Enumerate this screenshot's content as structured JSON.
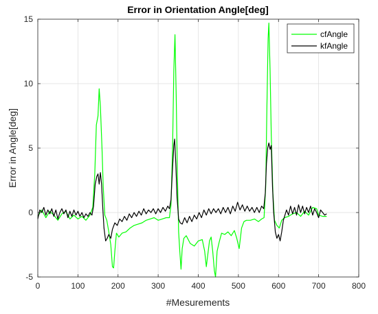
{
  "chart_data": {
    "type": "line",
    "title": "Error in Orientation Angle[deg]",
    "xlabel": "#Mesurements",
    "ylabel": "Error in Angle[deg]",
    "xlim": [
      0,
      800
    ],
    "ylim": [
      -5,
      15
    ],
    "xticks": [
      "0",
      "100",
      "200",
      "300",
      "400",
      "500",
      "600",
      "700",
      "800"
    ],
    "yticks": [
      "-5",
      "0",
      "5",
      "10",
      "15"
    ],
    "grid": true,
    "legend_position": "top-right",
    "series": [
      {
        "name": "cfAngle",
        "color": "#00ff00",
        "points": [
          [
            0,
            -0.3
          ],
          [
            10,
            0.2
          ],
          [
            20,
            -0.4
          ],
          [
            30,
            0.1
          ],
          [
            40,
            -0.2
          ],
          [
            50,
            -0.6
          ],
          [
            60,
            -0.1
          ],
          [
            70,
            0.1
          ],
          [
            80,
            -0.5
          ],
          [
            90,
            -0.2
          ],
          [
            100,
            -0.5
          ],
          [
            110,
            -0.3
          ],
          [
            120,
            -0.6
          ],
          [
            130,
            -0.2
          ],
          [
            137,
            0.4
          ],
          [
            142,
            3.0
          ],
          [
            146,
            6.8
          ],
          [
            150,
            7.5
          ],
          [
            153,
            9.6
          ],
          [
            156,
            8.2
          ],
          [
            160,
            5.0
          ],
          [
            163,
            2.0
          ],
          [
            167,
            -0.2
          ],
          [
            172,
            -0.6
          ],
          [
            177,
            -1.5
          ],
          [
            182,
            -2.5
          ],
          [
            186,
            -4.2
          ],
          [
            189,
            -4.3
          ],
          [
            192,
            -3.0
          ],
          [
            196,
            -1.6
          ],
          [
            202,
            -1.9
          ],
          [
            210,
            -1.6
          ],
          [
            220,
            -1.5
          ],
          [
            230,
            -1.2
          ],
          [
            240,
            -1.0
          ],
          [
            250,
            -0.9
          ],
          [
            260,
            -0.8
          ],
          [
            270,
            -0.6
          ],
          [
            280,
            -0.5
          ],
          [
            290,
            -0.4
          ],
          [
            300,
            -0.6
          ],
          [
            310,
            -0.5
          ],
          [
            320,
            -0.4
          ],
          [
            328,
            -0.4
          ],
          [
            332,
            0.6
          ],
          [
            336,
            5.0
          ],
          [
            339,
            11.0
          ],
          [
            342,
            13.8
          ],
          [
            345,
            9.0
          ],
          [
            348,
            3.0
          ],
          [
            351,
            -1.5
          ],
          [
            354,
            -3.0
          ],
          [
            357,
            -4.4
          ],
          [
            360,
            -2.8
          ],
          [
            364,
            -2.0
          ],
          [
            370,
            -1.8
          ],
          [
            380,
            -2.4
          ],
          [
            390,
            -2.6
          ],
          [
            400,
            -2.2
          ],
          [
            410,
            -2.1
          ],
          [
            416,
            -3.0
          ],
          [
            420,
            -4.2
          ],
          [
            424,
            -3.2
          ],
          [
            428,
            -2.2
          ],
          [
            432,
            -1.9
          ],
          [
            436,
            -3.0
          ],
          [
            440,
            -4.5
          ],
          [
            443,
            -5.0
          ],
          [
            447,
            -3.0
          ],
          [
            452,
            -2.3
          ],
          [
            458,
            -1.6
          ],
          [
            466,
            -1.7
          ],
          [
            474,
            -1.5
          ],
          [
            482,
            -1.8
          ],
          [
            490,
            -1.4
          ],
          [
            496,
            -2.0
          ],
          [
            502,
            -2.8
          ],
          [
            508,
            -1.2
          ],
          [
            514,
            -0.7
          ],
          [
            520,
            -0.6
          ],
          [
            530,
            -0.6
          ],
          [
            540,
            -0.5
          ],
          [
            550,
            -0.7
          ],
          [
            558,
            -0.5
          ],
          [
            564,
            -0.4
          ],
          [
            568,
            2.0
          ],
          [
            571,
            8.0
          ],
          [
            574,
            13.5
          ],
          [
            576,
            14.7
          ],
          [
            579,
            11.0
          ],
          [
            582,
            6.0
          ],
          [
            586,
            1.5
          ],
          [
            590,
            -0.6
          ],
          [
            596,
            -1.0
          ],
          [
            602,
            -1.2
          ],
          [
            608,
            -0.6
          ],
          [
            615,
            -0.4
          ],
          [
            625,
            -0.3
          ],
          [
            635,
            -0.1
          ],
          [
            645,
            0.0
          ],
          [
            655,
            -0.3
          ],
          [
            665,
            0.1
          ],
          [
            675,
            -0.2
          ],
          [
            685,
            0.4
          ],
          [
            695,
            0.3
          ],
          [
            700,
            -0.2
          ],
          [
            710,
            -0.3
          ],
          [
            720,
            -0.3
          ]
        ]
      },
      {
        "name": "kfAngle",
        "color": "#000000",
        "points": [
          [
            0,
            -0.5
          ],
          [
            5,
            0.2
          ],
          [
            10,
            0.0
          ],
          [
            15,
            0.4
          ],
          [
            20,
            -0.2
          ],
          [
            25,
            0.2
          ],
          [
            30,
            -0.1
          ],
          [
            35,
            0.3
          ],
          [
            40,
            -0.3
          ],
          [
            45,
            0.2
          ],
          [
            50,
            -0.5
          ],
          [
            55,
            0.0
          ],
          [
            60,
            0.3
          ],
          [
            65,
            -0.1
          ],
          [
            70,
            0.2
          ],
          [
            75,
            -0.4
          ],
          [
            80,
            0.1
          ],
          [
            85,
            -0.3
          ],
          [
            90,
            0.2
          ],
          [
            95,
            -0.2
          ],
          [
            100,
            0.1
          ],
          [
            105,
            -0.3
          ],
          [
            110,
            0.0
          ],
          [
            115,
            -0.4
          ],
          [
            120,
            -0.1
          ],
          [
            125,
            -0.3
          ],
          [
            130,
            0.0
          ],
          [
            135,
            -0.2
          ],
          [
            139,
            0.5
          ],
          [
            143,
            2.2
          ],
          [
            147,
            2.8
          ],
          [
            150,
            3.0
          ],
          [
            153,
            2.2
          ],
          [
            156,
            3.1
          ],
          [
            159,
            2.2
          ],
          [
            162,
            0.3
          ],
          [
            165,
            -1.2
          ],
          [
            169,
            -2.2
          ],
          [
            173,
            -2.0
          ],
          [
            177,
            -1.7
          ],
          [
            182,
            -2.0
          ],
          [
            186,
            -1.3
          ],
          [
            192,
            -0.8
          ],
          [
            198,
            -1.0
          ],
          [
            204,
            -0.5
          ],
          [
            210,
            -0.7
          ],
          [
            216,
            -0.3
          ],
          [
            222,
            -0.6
          ],
          [
            228,
            -0.1
          ],
          [
            234,
            -0.4
          ],
          [
            240,
            0.0
          ],
          [
            246,
            -0.3
          ],
          [
            252,
            0.1
          ],
          [
            258,
            -0.2
          ],
          [
            264,
            0.3
          ],
          [
            270,
            -0.1
          ],
          [
            276,
            0.2
          ],
          [
            282,
            0.0
          ],
          [
            288,
            0.3
          ],
          [
            294,
            -0.1
          ],
          [
            300,
            0.3
          ],
          [
            306,
            0.0
          ],
          [
            312,
            0.4
          ],
          [
            318,
            0.1
          ],
          [
            324,
            0.5
          ],
          [
            328,
            0.3
          ],
          [
            332,
            1.0
          ],
          [
            336,
            3.5
          ],
          [
            339,
            5.2
          ],
          [
            341,
            5.7
          ],
          [
            344,
            3.8
          ],
          [
            347,
            1.2
          ],
          [
            351,
            -0.5
          ],
          [
            355,
            -0.8
          ],
          [
            360,
            -0.9
          ],
          [
            366,
            -0.4
          ],
          [
            372,
            -0.8
          ],
          [
            378,
            -0.3
          ],
          [
            384,
            -0.7
          ],
          [
            390,
            -0.2
          ],
          [
            396,
            -0.5
          ],
          [
            402,
            0.0
          ],
          [
            408,
            -0.4
          ],
          [
            414,
            0.2
          ],
          [
            420,
            -0.2
          ],
          [
            426,
            0.3
          ],
          [
            432,
            -0.1
          ],
          [
            438,
            0.3
          ],
          [
            444,
            0.0
          ],
          [
            450,
            0.3
          ],
          [
            456,
            -0.1
          ],
          [
            462,
            0.4
          ],
          [
            468,
            0.0
          ],
          [
            474,
            0.4
          ],
          [
            480,
            -0.1
          ],
          [
            486,
            0.5
          ],
          [
            492,
            0.1
          ],
          [
            498,
            0.8
          ],
          [
            504,
            0.2
          ],
          [
            510,
            0.6
          ],
          [
            516,
            0.1
          ],
          [
            522,
            0.5
          ],
          [
            528,
            0.1
          ],
          [
            534,
            0.4
          ],
          [
            540,
            0.0
          ],
          [
            546,
            0.4
          ],
          [
            552,
            0.0
          ],
          [
            558,
            0.5
          ],
          [
            563,
            0.3
          ],
          [
            567,
            1.5
          ],
          [
            570,
            3.8
          ],
          [
            573,
            5.0
          ],
          [
            576,
            5.4
          ],
          [
            579,
            4.9
          ],
          [
            582,
            5.2
          ],
          [
            585,
            2.0
          ],
          [
            588,
            0.0
          ],
          [
            592,
            -1.5
          ],
          [
            596,
            -2.0
          ],
          [
            600,
            -1.7
          ],
          [
            604,
            -2.2
          ],
          [
            608,
            -1.5
          ],
          [
            612,
            -0.6
          ],
          [
            616,
            -0.2
          ],
          [
            620,
            0.2
          ],
          [
            625,
            -0.2
          ],
          [
            630,
            0.5
          ],
          [
            635,
            -0.1
          ],
          [
            640,
            0.4
          ],
          [
            645,
            -0.2
          ],
          [
            650,
            0.6
          ],
          [
            655,
            0.0
          ],
          [
            660,
            0.5
          ],
          [
            665,
            -0.1
          ],
          [
            670,
            0.4
          ],
          [
            675,
            0.0
          ],
          [
            680,
            0.5
          ],
          [
            685,
            -0.2
          ],
          [
            690,
            0.3
          ],
          [
            695,
            0.0
          ],
          [
            700,
            -0.4
          ],
          [
            705,
            0.2
          ],
          [
            710,
            0.0
          ],
          [
            715,
            -0.2
          ],
          [
            720,
            -0.1
          ]
        ]
      }
    ]
  }
}
